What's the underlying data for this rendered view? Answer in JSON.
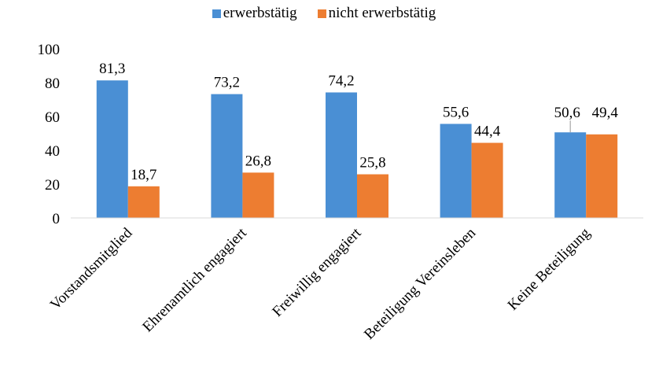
{
  "chart_data": {
    "type": "bar",
    "categories": [
      "Vorstandsmitglied",
      "Ehrenamtlich engagiert",
      "Freiwillig engagiert",
      "Beteiligung Vereinsleben",
      "Keine Beteiligung"
    ],
    "series": [
      {
        "name": "erwerbstätig",
        "values": [
          81.3,
          73.2,
          74.2,
          55.6,
          50.6
        ],
        "labels": [
          "81,3",
          "73,2",
          "74,2",
          "55,6",
          "50,6"
        ],
        "color": "#4a8fd4"
      },
      {
        "name": "nicht erwerbstätig",
        "values": [
          18.7,
          26.8,
          25.8,
          44.4,
          49.4
        ],
        "labels": [
          "18,7",
          "26,8",
          "25,8",
          "44,4",
          "49,4"
        ],
        "color": "#ed7d31"
      }
    ],
    "yticks": [
      "0",
      "20",
      "40",
      "60",
      "80",
      "100"
    ],
    "ylim": [
      0,
      100
    ],
    "grid": false,
    "legend_position": "top-center"
  }
}
